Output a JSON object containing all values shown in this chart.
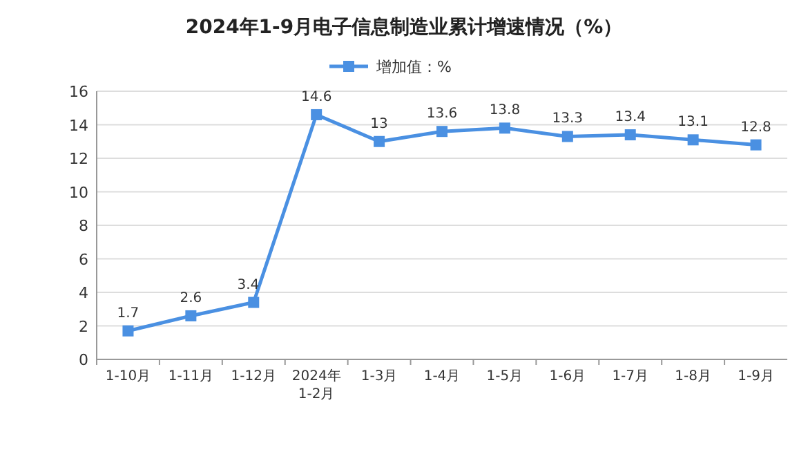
{
  "chart_data": {
    "type": "line",
    "title": "2024年1-9月电子信息制造业累计增速情况（%）",
    "categories": [
      "1-10月",
      "1-11月",
      "1-12月",
      "2024年\n1-2月",
      "1-3月",
      "1-4月",
      "1-5月",
      "1-6月",
      "1-7月",
      "1-8月",
      "1-9月"
    ],
    "series": [
      {
        "name": "增加值：%",
        "color": "#4a90e2",
        "values": [
          1.7,
          2.6,
          3.4,
          14.6,
          13,
          13.6,
          13.8,
          13.3,
          13.4,
          13.1,
          12.8
        ]
      }
    ],
    "ylim": [
      0,
      16
    ],
    "yticks": [
      0,
      2,
      4,
      6,
      8,
      10,
      12,
      14,
      16
    ],
    "grid": "y",
    "legend": "top",
    "marker": "square",
    "line_style": "solid",
    "data_labels": true
  }
}
